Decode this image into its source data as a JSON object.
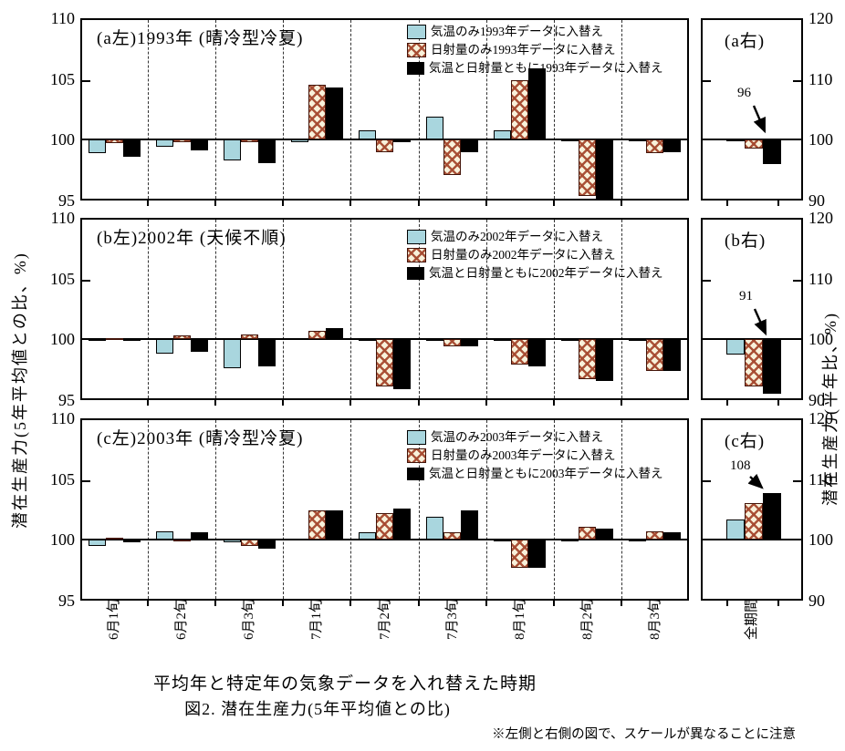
{
  "figure": {
    "x_axis_title": "平均年と特定年の気象データを入れ替えた時期",
    "caption": "図2. 潜在生産力(5年平均値との比)",
    "note": "※左側と右側の図で、スケールが異なることに注意"
  },
  "y_axis_left": {
    "label": "潜在生産力(5年平均値との比、%)",
    "ticks": [
      "110",
      "105",
      "100",
      "95"
    ]
  },
  "y_axis_right": {
    "label": "潜在生産力(平年比、%)",
    "ticks": [
      "120",
      "110",
      "100",
      "90"
    ]
  },
  "x_axis": {
    "categories": [
      "6月1旬",
      "6月2旬",
      "6月3旬",
      "7月1旬",
      "7月2旬",
      "7月3旬",
      "8月1旬",
      "8月2旬",
      "8月3旬"
    ],
    "overall": "全期間"
  },
  "colors": {
    "temp_only": "#a9d6de",
    "radiation_hatch": "#a6492f",
    "hatch_background": "#f8f1da",
    "both_black": "#000000"
  },
  "chart_data": [
    {
      "type": "bar",
      "left": {
        "title": "(a左)1993年 (晴冷型冷夏)",
        "ylim": [
          95,
          110
        ],
        "yticks": [
          110,
          105,
          100,
          95
        ],
        "categories": [
          "6月1旬",
          "6月2旬",
          "6月3旬",
          "7月1旬",
          "7月2旬",
          "7月3旬",
          "8月1旬",
          "8月2旬",
          "8月3旬"
        ],
        "series": [
          {
            "name": "気温のみ1993年データに入替え",
            "values": [
              98.9,
              99.4,
              98.3,
              99.8,
              100.8,
              101.9,
              100.8,
              99.9,
              99.9
            ]
          },
          {
            "name": "日射量のみ1993年データに入替え",
            "values": [
              99.7,
              99.8,
              99.8,
              104.5,
              99.0,
              97.1,
              104.9,
              95.4,
              98.9
            ]
          },
          {
            "name": "気温と日射量ともに1993年データに入替え",
            "values": [
              98.6,
              99.1,
              98.1,
              104.3,
              99.8,
              99.0,
              105.9,
              95.1,
              99.0
            ]
          }
        ]
      },
      "right": {
        "title": "(a右)",
        "ylim": [
          90,
          120
        ],
        "yticks": [
          120,
          110,
          100,
          90
        ],
        "category": "全期間",
        "values": [
          99.7,
          98.5,
          96.0
        ],
        "annotation": "96"
      }
    },
    {
      "type": "bar",
      "left": {
        "title": "(b左)2002年 (天候不順)",
        "ylim": [
          95,
          110
        ],
        "yticks": [
          110,
          105,
          100,
          95
        ],
        "categories": [
          "6月1旬",
          "6月2旬",
          "6月3旬",
          "7月1旬",
          "7月2旬",
          "7月3旬",
          "8月1旬",
          "8月2旬",
          "8月3旬"
        ],
        "series": [
          {
            "name": "気温のみ2002年データに入替え",
            "values": [
              99.9,
              98.8,
              97.6,
              100.1,
              99.9,
              99.9,
              99.9,
              99.9,
              99.9
            ]
          },
          {
            "name": "日射量のみ2002年データに入替え",
            "values": [
              100.1,
              100.3,
              100.4,
              100.7,
              96.1,
              99.4,
              97.9,
              96.7,
              97.4
            ]
          },
          {
            "name": "気温と日射量ともに2002年データに入替え",
            "values": [
              100.0,
              99.0,
              97.8,
              100.9,
              95.9,
              99.4,
              97.8,
              96.6,
              97.4
            ]
          }
        ]
      },
      "right": {
        "title": "(b右)",
        "ylim": [
          90,
          120
        ],
        "yticks": [
          120,
          110,
          100,
          90
        ],
        "category": "全期間",
        "values": [
          97.5,
          92.2,
          91.0
        ],
        "annotation": "91"
      }
    },
    {
      "type": "bar",
      "left": {
        "title": "(c左)2003年 (晴冷型冷夏)",
        "ylim": [
          95,
          110
        ],
        "yticks": [
          110,
          105,
          100,
          95
        ],
        "categories": [
          "6月1旬",
          "6月2旬",
          "6月3旬",
          "7月1旬",
          "7月2旬",
          "7月3旬",
          "8月1旬",
          "8月2旬",
          "8月3旬"
        ],
        "series": [
          {
            "name": "気温のみ2003年データに入替え",
            "values": [
              99.5,
              100.7,
              99.8,
              100.1,
              100.6,
              101.9,
              99.9,
              99.9,
              99.9
            ]
          },
          {
            "name": "日射量のみ2003年データに入替え",
            "values": [
              100.2,
              100.0,
              99.5,
              102.4,
              102.2,
              100.6,
              97.7,
              101.1,
              100.7
            ]
          },
          {
            "name": "気温と日射量ともに2003年データに入替え",
            "values": [
              99.8,
              100.6,
              99.3,
              102.4,
              102.6,
              102.4,
              97.7,
              100.9,
              100.6
            ]
          }
        ]
      },
      "right": {
        "title": "(c右)",
        "ylim": [
          90,
          120
        ],
        "yticks": [
          120,
          110,
          100,
          90
        ],
        "category": "全期間",
        "values": [
          103.3,
          106.0,
          107.7
        ],
        "annotation": "108"
      }
    }
  ]
}
